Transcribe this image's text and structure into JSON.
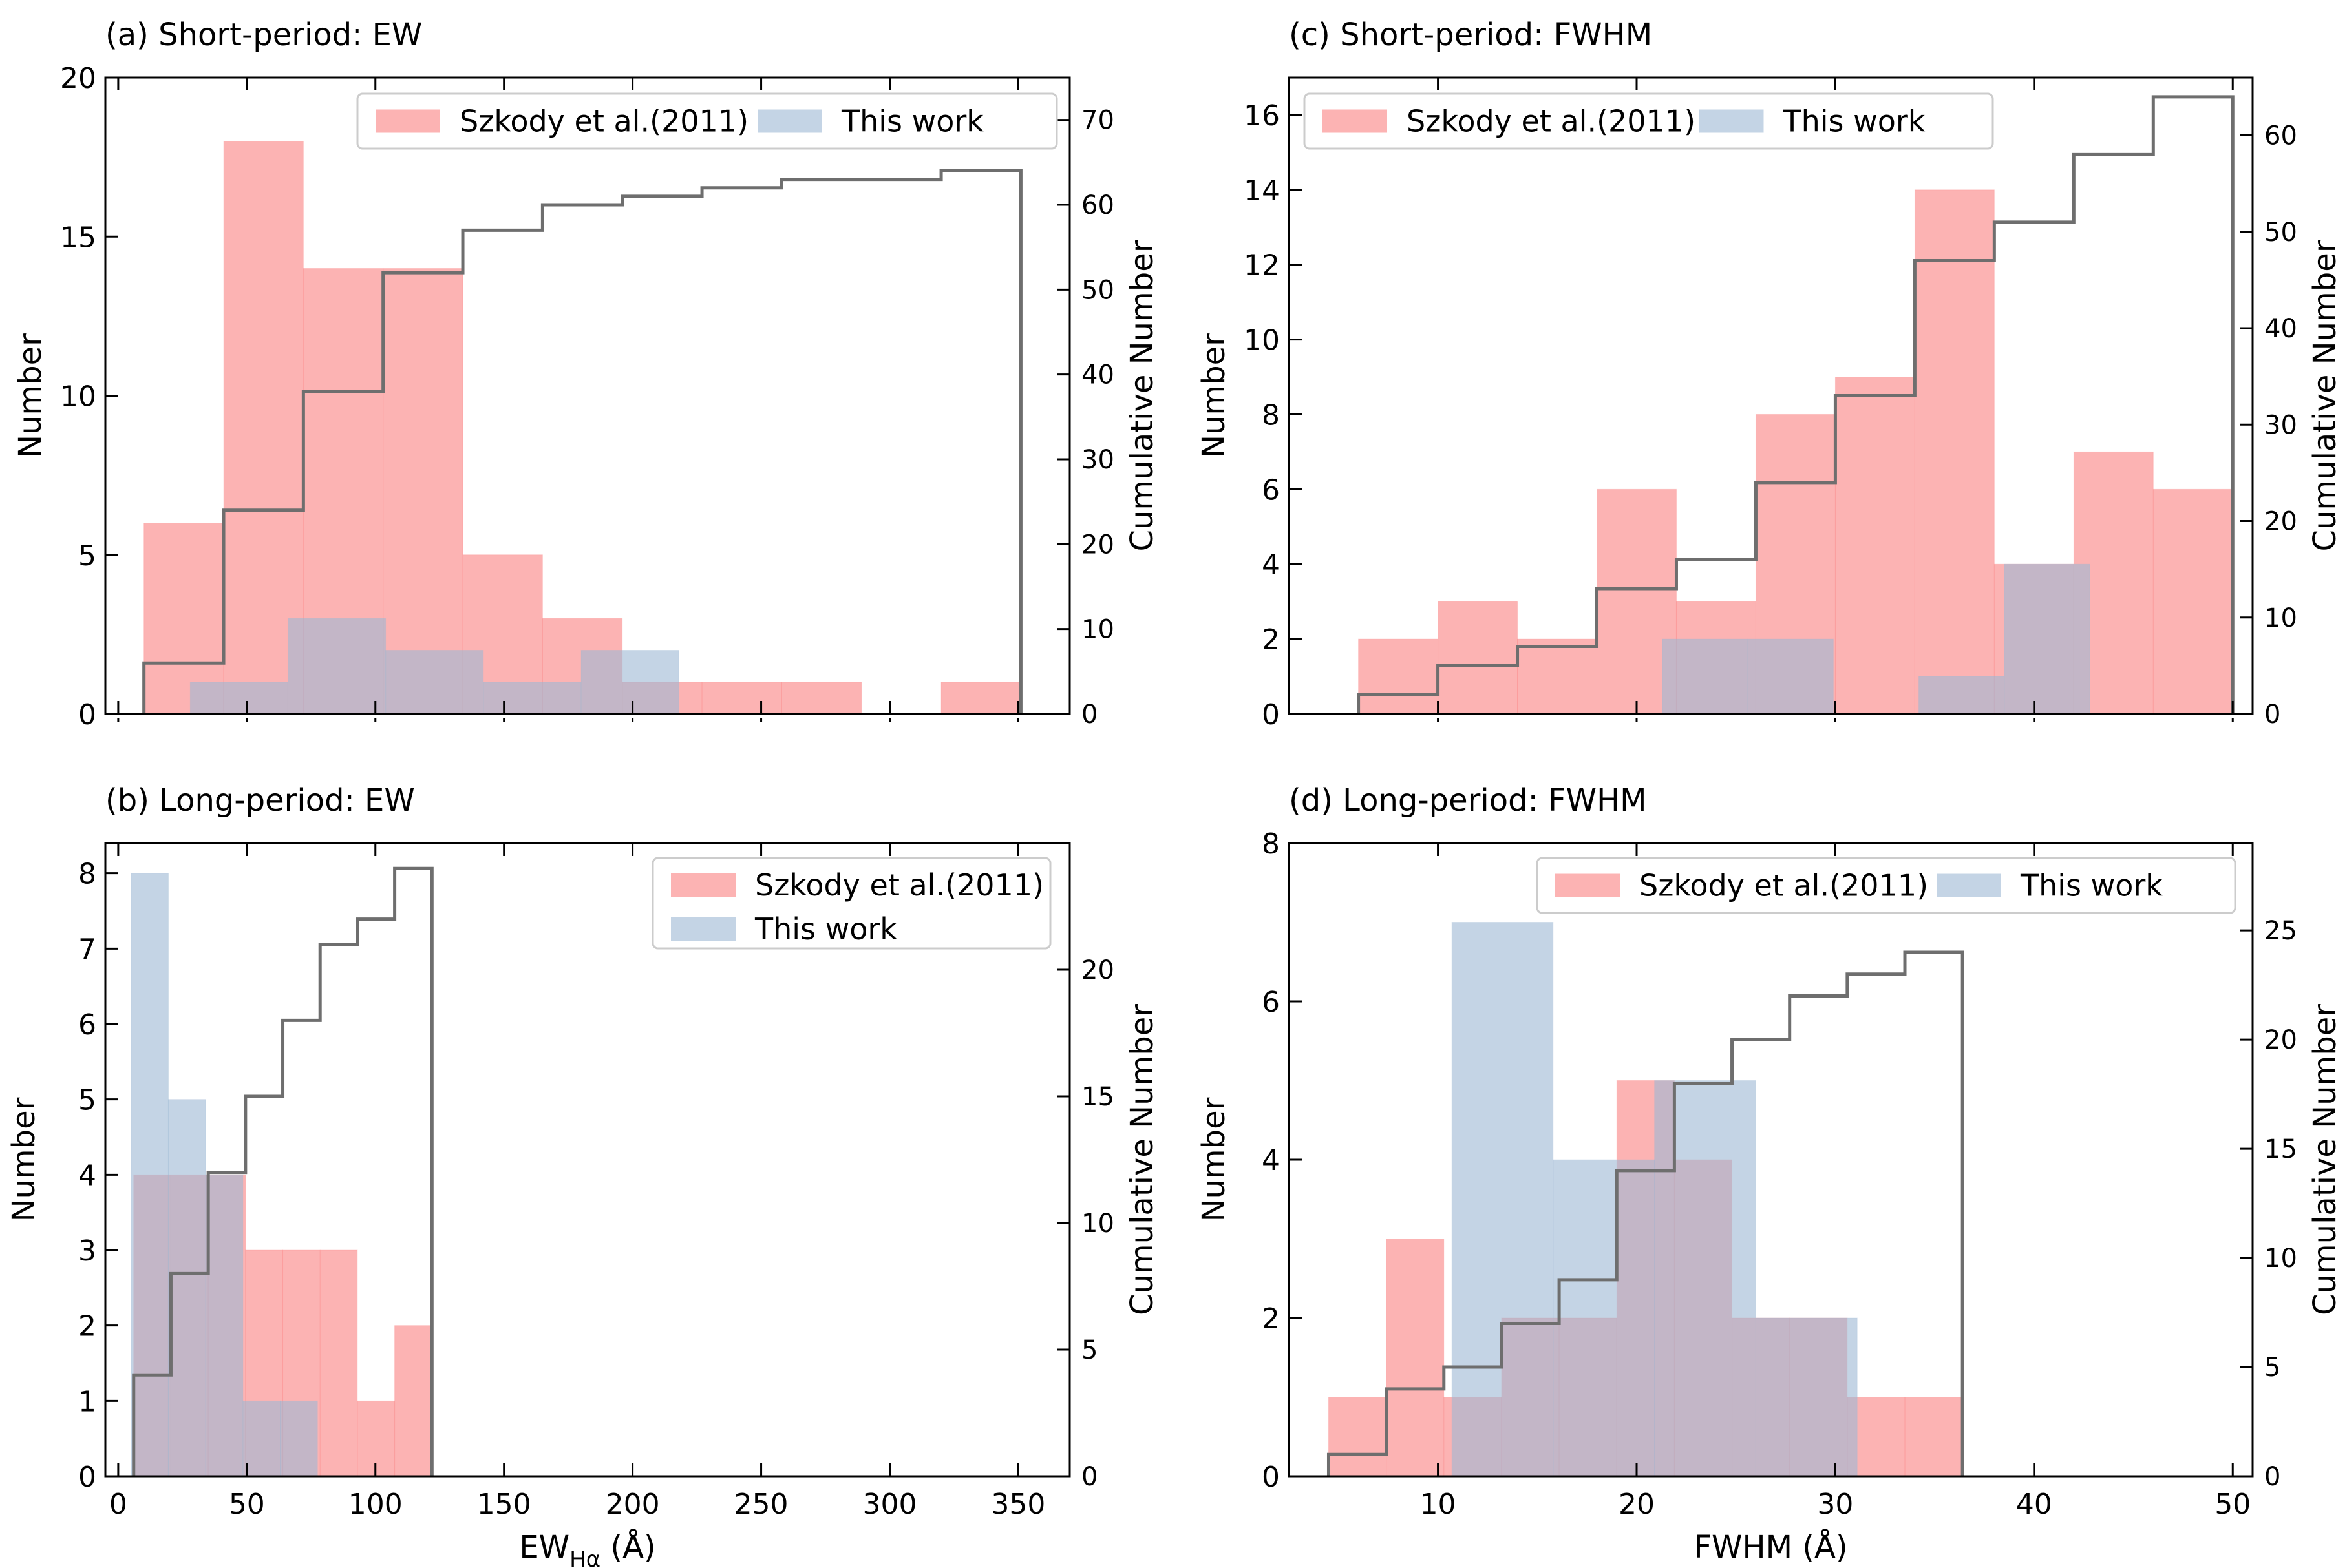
{
  "colors": {
    "szkody": "#fa8080",
    "this_work": "#9db8d4",
    "cumulative": "#6e6e6e",
    "axis": "#000000",
    "legend_border": "#cccccc"
  },
  "chart_data": [
    {
      "id": "a",
      "type": "bar",
      "title": "(a) Short-period: EW",
      "xlabel": "",
      "ylabel": "Number",
      "y2label": "Cumulative Number",
      "xlim": [
        -5,
        370
      ],
      "ylim": [
        0,
        20
      ],
      "y2lim": [
        0,
        75
      ],
      "xticks": [
        0,
        50,
        100,
        150,
        200,
        250,
        300,
        350
      ],
      "show_xticklabels": false,
      "yticks": [
        0,
        5,
        10,
        15,
        20
      ],
      "y2ticks": [
        0,
        10,
        20,
        30,
        40,
        50,
        60,
        70
      ],
      "legend": {
        "location": "top-right",
        "ncol": 2,
        "entries": [
          "Szkody et al.(2011)",
          "This work"
        ]
      },
      "series": [
        {
          "name": "Szkody et al.(2011)",
          "color_key": "szkody",
          "opacity": 0.6,
          "bins": [
            [
              10,
              41,
              6
            ],
            [
              41,
              72,
              18
            ],
            [
              72,
              103,
              14
            ],
            [
              103,
              134,
              14
            ],
            [
              134,
              165,
              5
            ],
            [
              165,
              196,
              3
            ],
            [
              196,
              227,
              1
            ],
            [
              227,
              258,
              1
            ],
            [
              258,
              289,
              1
            ],
            [
              320,
              351,
              1
            ]
          ]
        },
        {
          "name": "This work",
          "color_key": "this_work",
          "opacity": 0.6,
          "bins": [
            [
              28,
              66,
              1
            ],
            [
              66,
              104,
              3
            ],
            [
              104,
              142,
              2
            ],
            [
              142,
              180,
              1
            ],
            [
              180,
              218,
              2
            ],
            [
              218,
              256,
              0
            ]
          ]
        }
      ],
      "cumulative": {
        "name": "Cumulative",
        "edges": [
          10,
          41,
          72,
          103,
          134,
          165,
          196,
          227,
          258,
          289,
          320,
          351
        ],
        "values": [
          6,
          24,
          38,
          52,
          57,
          60,
          61,
          62,
          63,
          63,
          64
        ]
      }
    },
    {
      "id": "b",
      "type": "bar",
      "title": "(b) Long-period: EW",
      "xlabel": "EW",
      "xlabel_sub": "Hα",
      "xlabel_unit": "(Å)",
      "ylabel": "Number",
      "y2label": "Cumulative Number",
      "xlim": [
        -5,
        370
      ],
      "ylim": [
        0,
        8.4
      ],
      "y2lim": [
        0,
        25
      ],
      "xticks": [
        0,
        50,
        100,
        150,
        200,
        250,
        300,
        350
      ],
      "show_xticklabels": true,
      "yticks": [
        0,
        1,
        2,
        3,
        4,
        5,
        6,
        7,
        8
      ],
      "y2ticks": [
        0,
        5,
        10,
        15,
        20
      ],
      "legend": {
        "location": "top-right",
        "ncol": 1,
        "entries": [
          "Szkody et al.(2011)",
          "This work"
        ]
      },
      "series": [
        {
          "name": "Szkody et al.(2011)",
          "color_key": "szkody",
          "opacity": 0.6,
          "bins": [
            [
              6,
              20.5,
              4
            ],
            [
              20.5,
              35,
              4
            ],
            [
              35,
              49.5,
              4
            ],
            [
              49.5,
              64,
              3
            ],
            [
              64,
              78.5,
              3
            ],
            [
              78.5,
              93,
              3
            ],
            [
              93,
              107.5,
              1
            ],
            [
              107.5,
              122,
              2
            ]
          ]
        },
        {
          "name": "This work",
          "color_key": "this_work",
          "opacity": 0.6,
          "bins": [
            [
              5,
              19.5,
              8
            ],
            [
              19.5,
              34,
              5
            ],
            [
              34,
              48.5,
              4
            ],
            [
              48.5,
              63,
              1
            ],
            [
              63,
              77.5,
              1
            ]
          ]
        }
      ],
      "cumulative": {
        "name": "Cumulative",
        "edges": [
          6,
          20.5,
          35,
          49.5,
          64,
          78.5,
          93,
          107.5,
          122
        ],
        "values": [
          4,
          8,
          12,
          15,
          18,
          21,
          22,
          24
        ]
      }
    },
    {
      "id": "c",
      "type": "bar",
      "title": "(c) Short-period: FWHM",
      "xlabel": "",
      "ylabel": "Number",
      "y2label": "Cumulative Number",
      "xlim": [
        2.5,
        51
      ],
      "ylim": [
        0,
        17
      ],
      "y2lim": [
        0,
        66
      ],
      "xticks": [
        10,
        20,
        30,
        40,
        50
      ],
      "show_xticklabels": false,
      "yticks": [
        0,
        2,
        4,
        6,
        8,
        10,
        12,
        14,
        16
      ],
      "y2ticks": [
        0,
        10,
        20,
        30,
        40,
        50,
        60
      ],
      "legend": {
        "location": "top-left",
        "ncol": 2,
        "entries": [
          "Szkody et al.(2011)",
          "This work"
        ]
      },
      "series": [
        {
          "name": "Szkody et al.(2011)",
          "color_key": "szkody",
          "opacity": 0.6,
          "bins": [
            [
              6,
              10,
              2
            ],
            [
              10,
              14,
              3
            ],
            [
              14,
              18,
              2
            ],
            [
              18,
              22,
              6
            ],
            [
              22,
              26,
              3
            ],
            [
              26,
              30,
              8
            ],
            [
              30,
              34,
              9
            ],
            [
              34,
              38,
              14
            ],
            [
              38,
              42,
              4
            ],
            [
              42,
              46,
              7
            ],
            [
              46,
              50,
              6
            ]
          ]
        },
        {
          "name": "This work",
          "color_key": "this_work",
          "opacity": 0.6,
          "bins": [
            [
              21.3,
              25.6,
              2
            ],
            [
              25.6,
              29.9,
              2
            ],
            [
              29.9,
              34.2,
              0
            ],
            [
              34.2,
              38.5,
              1
            ],
            [
              38.5,
              42.8,
              4
            ]
          ]
        }
      ],
      "cumulative": {
        "name": "Cumulative",
        "edges": [
          6,
          10,
          14,
          18,
          22,
          26,
          30,
          34,
          38,
          42,
          46,
          50
        ],
        "values": [
          2,
          5,
          7,
          13,
          16,
          24,
          33,
          47,
          51,
          58,
          64
        ]
      }
    },
    {
      "id": "d",
      "type": "bar",
      "title": "(d) Long-period: FWHM",
      "xlabel": "FWHM",
      "xlabel_sub": "",
      "xlabel_unit": "(Å)",
      "ylabel": "Number",
      "y2label": "Cumulative Number",
      "xlim": [
        2.5,
        51
      ],
      "ylim": [
        0,
        8
      ],
      "y2lim": [
        0,
        29
      ],
      "xticks": [
        10,
        20,
        30,
        40,
        50
      ],
      "show_xticklabels": true,
      "yticks": [
        0,
        2,
        4,
        6,
        8
      ],
      "y2ticks": [
        0,
        5,
        10,
        15,
        20,
        25
      ],
      "legend": {
        "location": "top-right",
        "ncol": 2,
        "entries": [
          "Szkody et al.(2011)",
          "This work"
        ]
      },
      "series": [
        {
          "name": "Szkody et al.(2011)",
          "color_key": "szkody",
          "opacity": 0.6,
          "bins": [
            [
              4.5,
              7.4,
              1
            ],
            [
              7.4,
              10.3,
              3
            ],
            [
              10.3,
              13.2,
              1
            ],
            [
              13.2,
              16.1,
              2
            ],
            [
              16.1,
              19,
              2
            ],
            [
              19,
              21.9,
              5
            ],
            [
              21.9,
              24.8,
              4
            ],
            [
              24.8,
              27.7,
              2
            ],
            [
              27.7,
              30.6,
              2
            ],
            [
              30.6,
              33.5,
              1
            ],
            [
              33.5,
              36.4,
              1
            ]
          ]
        },
        {
          "name": "This work",
          "color_key": "this_work",
          "opacity": 0.6,
          "bins": [
            [
              10.7,
              15.8,
              7
            ],
            [
              15.8,
              20.9,
              4
            ],
            [
              20.9,
              26,
              5
            ],
            [
              26,
              31.1,
              2
            ]
          ]
        }
      ],
      "cumulative": {
        "name": "Cumulative",
        "edges": [
          4.5,
          7.4,
          10.3,
          13.2,
          16.1,
          19,
          21.9,
          24.8,
          27.7,
          30.6,
          33.5,
          36.4
        ],
        "values": [
          1,
          4,
          5,
          7,
          9,
          14,
          18,
          20,
          22,
          23,
          24
        ]
      }
    }
  ]
}
